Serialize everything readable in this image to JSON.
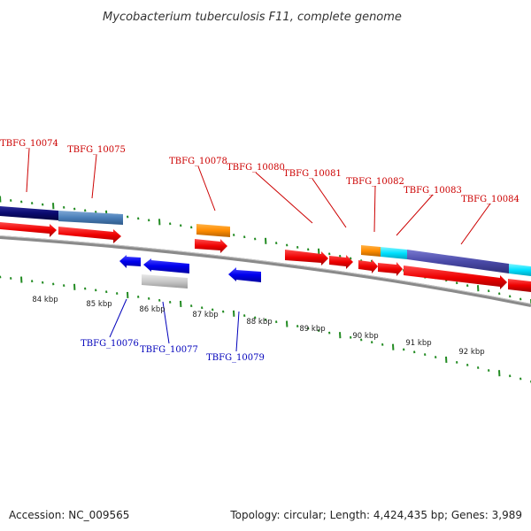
{
  "title": "Mycobacterium tuberculosis F11, complete genome",
  "footer": {
    "accession": "Accession: NC_009565",
    "summary": "Topology: circular; Length: 4,424,435 bp; Genes: 3,989"
  },
  "colors": {
    "forward_label": "#cc0000",
    "reverse_label": "#0000bb",
    "ticks": "#228B22",
    "backbone": "#888888"
  },
  "gene_labels_forward": [
    "TBFG_10074",
    "TBFG_10075",
    "TBFG_10078",
    "TBFG_10080",
    "TBFG_10081",
    "TBFG_10082",
    "TBFG_10083",
    "TBFG_10084"
  ],
  "gene_labels_reverse": [
    "TBFG_10076",
    "TBFG_10077",
    "TBFG_10079"
  ],
  "kbp_labels": [
    "84 kbp",
    "85 kbp",
    "86 kbp",
    "87 kbp",
    "88 kbp",
    "89 kbp",
    "90 kbp",
    "91 kbp",
    "92 kbp"
  ]
}
